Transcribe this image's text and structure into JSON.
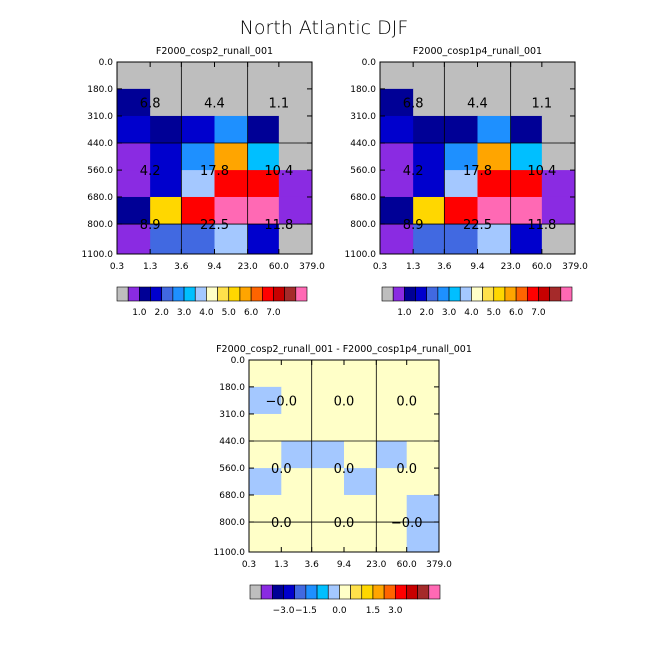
{
  "title": "North Atlantic DJF",
  "chart_data": [
    {
      "type": "heatmap",
      "title": "F2000_cosp2_runall_001",
      "x_tick_labels": [
        "0.3",
        "1.3",
        "3.6",
        "9.4",
        "23.0",
        "60.0",
        "379.0"
      ],
      "y_tick_labels": [
        "0.0",
        "180.0",
        "310.0",
        "440.0",
        "560.0",
        "680.0",
        "800.0",
        "1100.0"
      ],
      "cells": [
        [
          "grey",
          "grey",
          "grey",
          "grey",
          "grey",
          "grey"
        ],
        [
          "#000096",
          "grey",
          "grey",
          "grey",
          "grey",
          "grey"
        ],
        [
          "#0000CD",
          "#000096",
          "#0000CD",
          "#1E90FF",
          "#000096",
          "grey"
        ],
        [
          "#8A2BE2",
          "#0000CD",
          "#1E90FF",
          "#FFA500",
          "#00BFFF",
          "grey"
        ],
        [
          "#8A2BE2",
          "#0000CD",
          "#A4C8FF",
          "#FF0000",
          "#FF0000",
          "#8A2BE2"
        ],
        [
          "#000096",
          "#FFD700",
          "#FF0000",
          "#FF69B4",
          "#FF69B4",
          "#8A2BE2"
        ],
        [
          "#8A2BE2",
          "#4169E1",
          "#4169E1",
          "#A4C8FF",
          "#0000CD",
          "grey"
        ]
      ],
      "box_values": [
        [
          "6.8",
          "4.4",
          "1.1"
        ],
        [
          "4.2",
          "17.8",
          "10.4"
        ],
        [
          "8.9",
          "22.5",
          "11.8"
        ]
      ],
      "colorbar": {
        "colors": [
          "#BEBEBE",
          "#8A2BE2",
          "#000096",
          "#0000CD",
          "#4169E1",
          "#1E90FF",
          "#00BFFF",
          "#A4C8FF",
          "#FFFFC8",
          "#FFE14B",
          "#FFD700",
          "#FFA500",
          "#FF6400",
          "#FF0000",
          "#C80000",
          "#A52A2A",
          "#FF69B4"
        ],
        "tick_labels": [
          "1.0",
          "2.0",
          "3.0",
          "4.0",
          "5.0",
          "6.0",
          "7.0"
        ]
      }
    },
    {
      "type": "heatmap",
      "title": "F2000_cosp1p4_runall_001",
      "x_tick_labels": [
        "0.3",
        "1.3",
        "3.6",
        "9.4",
        "23.0",
        "60.0",
        "379.0"
      ],
      "y_tick_labels": [
        "0.0",
        "180.0",
        "310.0",
        "440.0",
        "560.0",
        "680.0",
        "800.0",
        "1100.0"
      ],
      "cells": [
        [
          "grey",
          "grey",
          "grey",
          "grey",
          "grey",
          "grey"
        ],
        [
          "#000096",
          "grey",
          "grey",
          "grey",
          "grey",
          "grey"
        ],
        [
          "#0000CD",
          "#000096",
          "#000096",
          "#1E90FF",
          "#000096",
          "grey"
        ],
        [
          "#8A2BE2",
          "#0000CD",
          "#1E90FF",
          "#FFA500",
          "#00BFFF",
          "grey"
        ],
        [
          "#8A2BE2",
          "#0000CD",
          "#A4C8FF",
          "#FF0000",
          "#FF0000",
          "#8A2BE2"
        ],
        [
          "#000096",
          "#FFD700",
          "#FF0000",
          "#FF69B4",
          "#FF69B4",
          "#8A2BE2"
        ],
        [
          "#8A2BE2",
          "#4169E1",
          "#4169E1",
          "#A4C8FF",
          "#0000CD",
          "grey"
        ]
      ],
      "box_values": [
        [
          "6.8",
          "4.4",
          "1.1"
        ],
        [
          "4.2",
          "17.8",
          "10.4"
        ],
        [
          "8.9",
          "22.5",
          "11.8"
        ]
      ],
      "colorbar": {
        "colors": [
          "#BEBEBE",
          "#8A2BE2",
          "#000096",
          "#0000CD",
          "#4169E1",
          "#1E90FF",
          "#00BFFF",
          "#A4C8FF",
          "#FFFFC8",
          "#FFE14B",
          "#FFD700",
          "#FFA500",
          "#FF6400",
          "#FF0000",
          "#C80000",
          "#A52A2A",
          "#FF69B4"
        ],
        "tick_labels": [
          "1.0",
          "2.0",
          "3.0",
          "4.0",
          "5.0",
          "6.0",
          "7.0"
        ]
      }
    },
    {
      "type": "heatmap",
      "title": "F2000_cosp2_runall_001 - F2000_cosp1p4_runall_001",
      "x_tick_labels": [
        "0.3",
        "1.3",
        "3.6",
        "9.4",
        "23.0",
        "60.0",
        "379.0"
      ],
      "y_tick_labels": [
        "0.0",
        "180.0",
        "310.0",
        "440.0",
        "560.0",
        "680.0",
        "800.0",
        "1100.0"
      ],
      "cells": [
        [
          "#FFFFC8",
          "#FFFFC8",
          "#FFFFC8",
          "#FFFFC8",
          "#FFFFC8",
          "#FFFFC8"
        ],
        [
          "#A4C8FF",
          "#FFFFC8",
          "#FFFFC8",
          "#FFFFC8",
          "#FFFFC8",
          "#FFFFC8"
        ],
        [
          "#FFFFC8",
          "#FFFFC8",
          "#FFFFC8",
          "#FFFFC8",
          "#FFFFC8",
          "#FFFFC8"
        ],
        [
          "#FFFFC8",
          "#A4C8FF",
          "#A4C8FF",
          "#FFFFC8",
          "#A4C8FF",
          "#FFFFC8"
        ],
        [
          "#A4C8FF",
          "#FFFFC8",
          "#FFFFC8",
          "#A4C8FF",
          "#FFFFC8",
          "#FFFFC8"
        ],
        [
          "#FFFFC8",
          "#FFFFC8",
          "#FFFFC8",
          "#FFFFC8",
          "#FFFFC8",
          "#A4C8FF"
        ],
        [
          "#FFFFC8",
          "#FFFFC8",
          "#FFFFC8",
          "#FFFFC8",
          "#FFFFC8",
          "#A4C8FF"
        ]
      ],
      "box_values": [
        [
          "−0.0",
          "0.0",
          "0.0"
        ],
        [
          "0.0",
          "0.0",
          "0.0"
        ],
        [
          "0.0",
          "0.0",
          "−0.0"
        ]
      ],
      "colorbar": {
        "colors": [
          "#BEBEBE",
          "#8A2BE2",
          "#000096",
          "#0000CD",
          "#4169E1",
          "#1E90FF",
          "#00BFFF",
          "#A4C8FF",
          "#FFFFC8",
          "#FFE14B",
          "#FFD700",
          "#FFA500",
          "#FF6400",
          "#FF0000",
          "#C80000",
          "#A52A2A",
          "#FF69B4"
        ],
        "tick_labels": [
          "−3.0",
          "−1.5",
          "0.0",
          "1.5",
          "3.0"
        ]
      }
    }
  ]
}
